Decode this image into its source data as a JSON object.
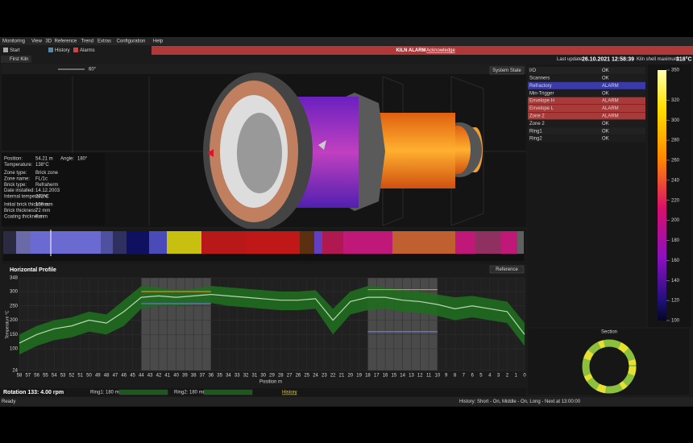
{
  "menu": [
    "Monitoring",
    "View",
    "3D",
    "Reference",
    "Trend",
    "Extras",
    "Configuration",
    "Help"
  ],
  "toolbar": [
    "Start",
    "History",
    "Alarms"
  ],
  "banner": {
    "title": "KILN ALARM",
    "action": "Acknowledge"
  },
  "tab": "First Kiln",
  "status": {
    "last_update_label": "Last update:",
    "last_update": "26.10.2021 12:58:39",
    "shell_max_label": "Kiln shell maximum:",
    "shell_max": "318°C"
  },
  "viewport": {
    "angle": "60°",
    "button": "System State"
  },
  "info": [
    [
      [
        "Position:",
        "54.21 m",
        "Angle:",
        "180°"
      ],
      [
        "Temperature:",
        "138°C"
      ]
    ],
    [
      [
        "Zone type:",
        "Brick zone"
      ],
      [
        "Zone name:",
        "FL/1c"
      ],
      [
        "Brick type:",
        "Refraherm"
      ],
      [
        "Date installed:",
        "14.12.2003"
      ],
      [
        "Internal temperature:",
        "272°C"
      ]
    ],
    [
      [
        "Initial brick thickness:",
        "100 mm"
      ],
      [
        "Brick thickness:",
        "72 mm"
      ],
      [
        "Coating thickness:",
        "0 mm"
      ]
    ]
  ],
  "states": [
    {
      "name": "I/O",
      "state": "OK"
    },
    {
      "name": "Scanners",
      "state": "OK"
    },
    {
      "name": "Refractory",
      "state": "ALARM",
      "color": "#3a3aa8"
    },
    {
      "name": "Min-Trigger",
      "state": "OK"
    },
    {
      "name": "Envelope H",
      "state": "ALARM",
      "color": "#a83a3a"
    },
    {
      "name": "Envelope L",
      "state": "ALARM",
      "color": "#a83a3a"
    },
    {
      "name": "Zone 2",
      "state": "ALARM",
      "color": "#a83a3a"
    },
    {
      "name": "Zone 2",
      "state": "OK"
    },
    {
      "name": "Ring1",
      "state": "OK"
    },
    {
      "name": "Ring2",
      "state": "OK"
    }
  ],
  "colorbar": [
    350,
    320,
    300,
    280,
    260,
    240,
    220,
    200,
    180,
    160,
    140,
    120,
    100
  ],
  "chart_data": {
    "type": "line",
    "title": "Horizontal Profile",
    "button": "Reference",
    "x_label": "Position m",
    "y_label": "Temperature °C",
    "x": [
      58,
      56,
      54,
      52,
      50,
      48,
      46,
      44,
      42,
      40,
      38,
      36,
      34,
      32,
      30,
      28,
      26,
      24,
      22,
      20,
      18,
      16,
      14,
      12,
      10,
      8,
      6,
      4,
      2,
      0
    ],
    "series": [
      {
        "color": "#1f6b1f",
        "values": [
          150,
          180,
          200,
          210,
          230,
          220,
          270,
          320,
          315,
          305,
          310,
          320,
          315,
          310,
          305,
          300,
          300,
          305,
          240,
          300,
          320,
          315,
          305,
          300,
          290,
          280,
          285,
          275,
          265,
          190
        ]
      },
      {
        "color": "#1f6b1f",
        "values": [
          80,
          110,
          130,
          140,
          160,
          150,
          180,
          240,
          250,
          250,
          255,
          260,
          250,
          245,
          240,
          235,
          235,
          240,
          150,
          220,
          235,
          240,
          230,
          225,
          215,
          200,
          210,
          200,
          190,
          110
        ]
      },
      {
        "color": "#b8d8b0",
        "values": [
          120,
          150,
          170,
          180,
          200,
          190,
          230,
          280,
          285,
          280,
          285,
          290,
          285,
          280,
          275,
          270,
          270,
          275,
          200,
          265,
          280,
          280,
          270,
          265,
          255,
          240,
          250,
          240,
          230,
          150
        ]
      }
    ],
    "regions": [
      [
        44,
        36
      ],
      [
        18,
        10
      ]
    ],
    "references": [
      {
        "x": [
          44,
          36
        ],
        "value": 300,
        "color": "#e08a2a"
      },
      {
        "x": [
          44,
          36
        ],
        "value": 258,
        "color": "#6a7ae0"
      },
      {
        "x": [
          18,
          10
        ],
        "value": 307,
        "color": "#e08a2a"
      },
      {
        "x": [
          18,
          10
        ],
        "value": 160,
        "color": "#6a7ae0"
      }
    ],
    "xlim": [
      58,
      0
    ],
    "ylim": [
      24,
      348
    ],
    "xticks": [
      58,
      57,
      56,
      55,
      54,
      53,
      52,
      51,
      50,
      49,
      48,
      47,
      46,
      45,
      44,
      43,
      42,
      41,
      40,
      39,
      38,
      37,
      36,
      35,
      34,
      33,
      32,
      31,
      30,
      29,
      28,
      27,
      26,
      25,
      24,
      23,
      22,
      21,
      20,
      19,
      18,
      17,
      16,
      15,
      14,
      13,
      12,
      11,
      10,
      9,
      8,
      7,
      6,
      5,
      4,
      3,
      2,
      1,
      0
    ],
    "yticks": [
      24,
      100,
      150,
      200,
      250,
      300,
      348
    ],
    "grid": true
  },
  "section": "Section",
  "rotation": {
    "label": "Rotation 133: 4.00 rpm",
    "ring1": "Ring1: 180 mm",
    "ring2": "Ring2: 180 mm",
    "history": "History"
  },
  "footer": {
    "left": "Ready",
    "right": "History: Short - On, Middle - On, Long - Next at 13:00:00"
  }
}
